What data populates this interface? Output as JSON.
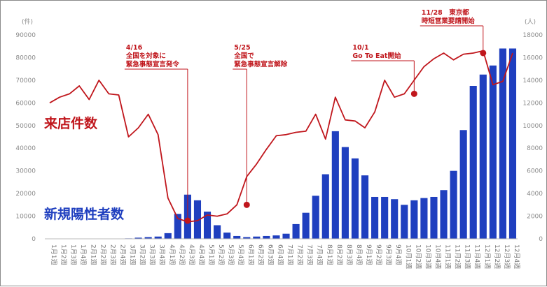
{
  "chart_data": {
    "type": "bar+line",
    "categories": [
      "1月1週",
      "1月2週",
      "1月3週",
      "1月4週",
      "2月1週",
      "2月2週",
      "2月3週",
      "2月4週",
      "3月1週",
      "3月2週",
      "3月3週",
      "3月4週",
      "4月1週",
      "4月2週",
      "4月3週",
      "4月4週",
      "5月1週",
      "5月2週",
      "5月3週",
      "5月4週",
      "6月1週",
      "6月2週",
      "6月3週",
      "6月4週",
      "7月1週",
      "7月2週",
      "7月3週",
      "7月4週",
      "8月1週",
      "8月2週",
      "8月3週",
      "8月4週",
      "9月1週",
      "9月2週",
      "9月3週",
      "9月4週",
      "10月1週",
      "10月2週",
      "10月3週",
      "10月4週",
      "11月1週",
      "11月2週",
      "11月3週",
      "11月4週",
      "12月1週",
      "12月2週",
      "12月3週",
      "12月4週"
    ],
    "series": [
      {
        "name": "来店件数",
        "type": "line",
        "axis": "left",
        "color": "#c0161c",
        "values": [
          60000,
          62500,
          64000,
          67500,
          61500,
          70000,
          64000,
          63500,
          45000,
          49000,
          55000,
          46000,
          18000,
          9000,
          7500,
          8000,
          10500,
          10000,
          11000,
          15000,
          27500,
          33000,
          39500,
          45500,
          46000,
          47000,
          47500,
          55000,
          44000,
          62500,
          52500,
          52000,
          49000,
          56000,
          70000,
          62500,
          64000,
          70000,
          76000,
          79500,
          82000,
          79000,
          81500,
          82000,
          83000,
          68000,
          69500,
          82000
        ]
      },
      {
        "name": "新規陽性者数",
        "type": "bar",
        "axis": "right",
        "color": "#1f3fbf",
        "values": [
          0,
          0,
          0,
          0,
          0,
          0,
          0,
          0,
          40,
          100,
          150,
          200,
          500,
          2200,
          3900,
          3400,
          2400,
          1200,
          550,
          250,
          150,
          200,
          250,
          300,
          450,
          1300,
          2300,
          3800,
          5700,
          9500,
          8100,
          7100,
          5600,
          3700,
          3700,
          3500,
          3000,
          3400,
          3600,
          3700,
          4300,
          6000,
          9600,
          13500,
          14500,
          15300,
          16800,
          16800
        ]
      }
    ],
    "y_left": {
      "unit": "(件)",
      "min": 0,
      "max": 90000,
      "ticks": [
        "0",
        "10000",
        "20000",
        "30000",
        "40000",
        "50000",
        "60000",
        "70000",
        "80000",
        "90000"
      ]
    },
    "y_right": {
      "unit": "(人)",
      "min": 0,
      "max": 18000,
      "ticks": [
        "0",
        "2000",
        "4000",
        "6000",
        "8000",
        "10000",
        "12000",
        "14000",
        "16000",
        "18000"
      ]
    },
    "series_labels": {
      "line": "来店件数",
      "bars": "新規陽性者数"
    },
    "annotations": [
      {
        "index": 14,
        "value": 8000,
        "lines": [
          "4/16",
          "全国を対象に",
          "緊急事態宣言発令"
        ]
      },
      {
        "index": 20,
        "value": 15000,
        "lines": [
          "5/25",
          "全国で",
          "緊急事態宣言解除"
        ]
      },
      {
        "index": 37,
        "value": 64000,
        "lines": [
          "10/1",
          "Go To Eat開始"
        ]
      },
      {
        "index": 44,
        "value": 82000,
        "lines": [
          "11/28　東京都",
          "時短営業要請開始"
        ]
      }
    ],
    "grid": false,
    "legend": "inline"
  }
}
